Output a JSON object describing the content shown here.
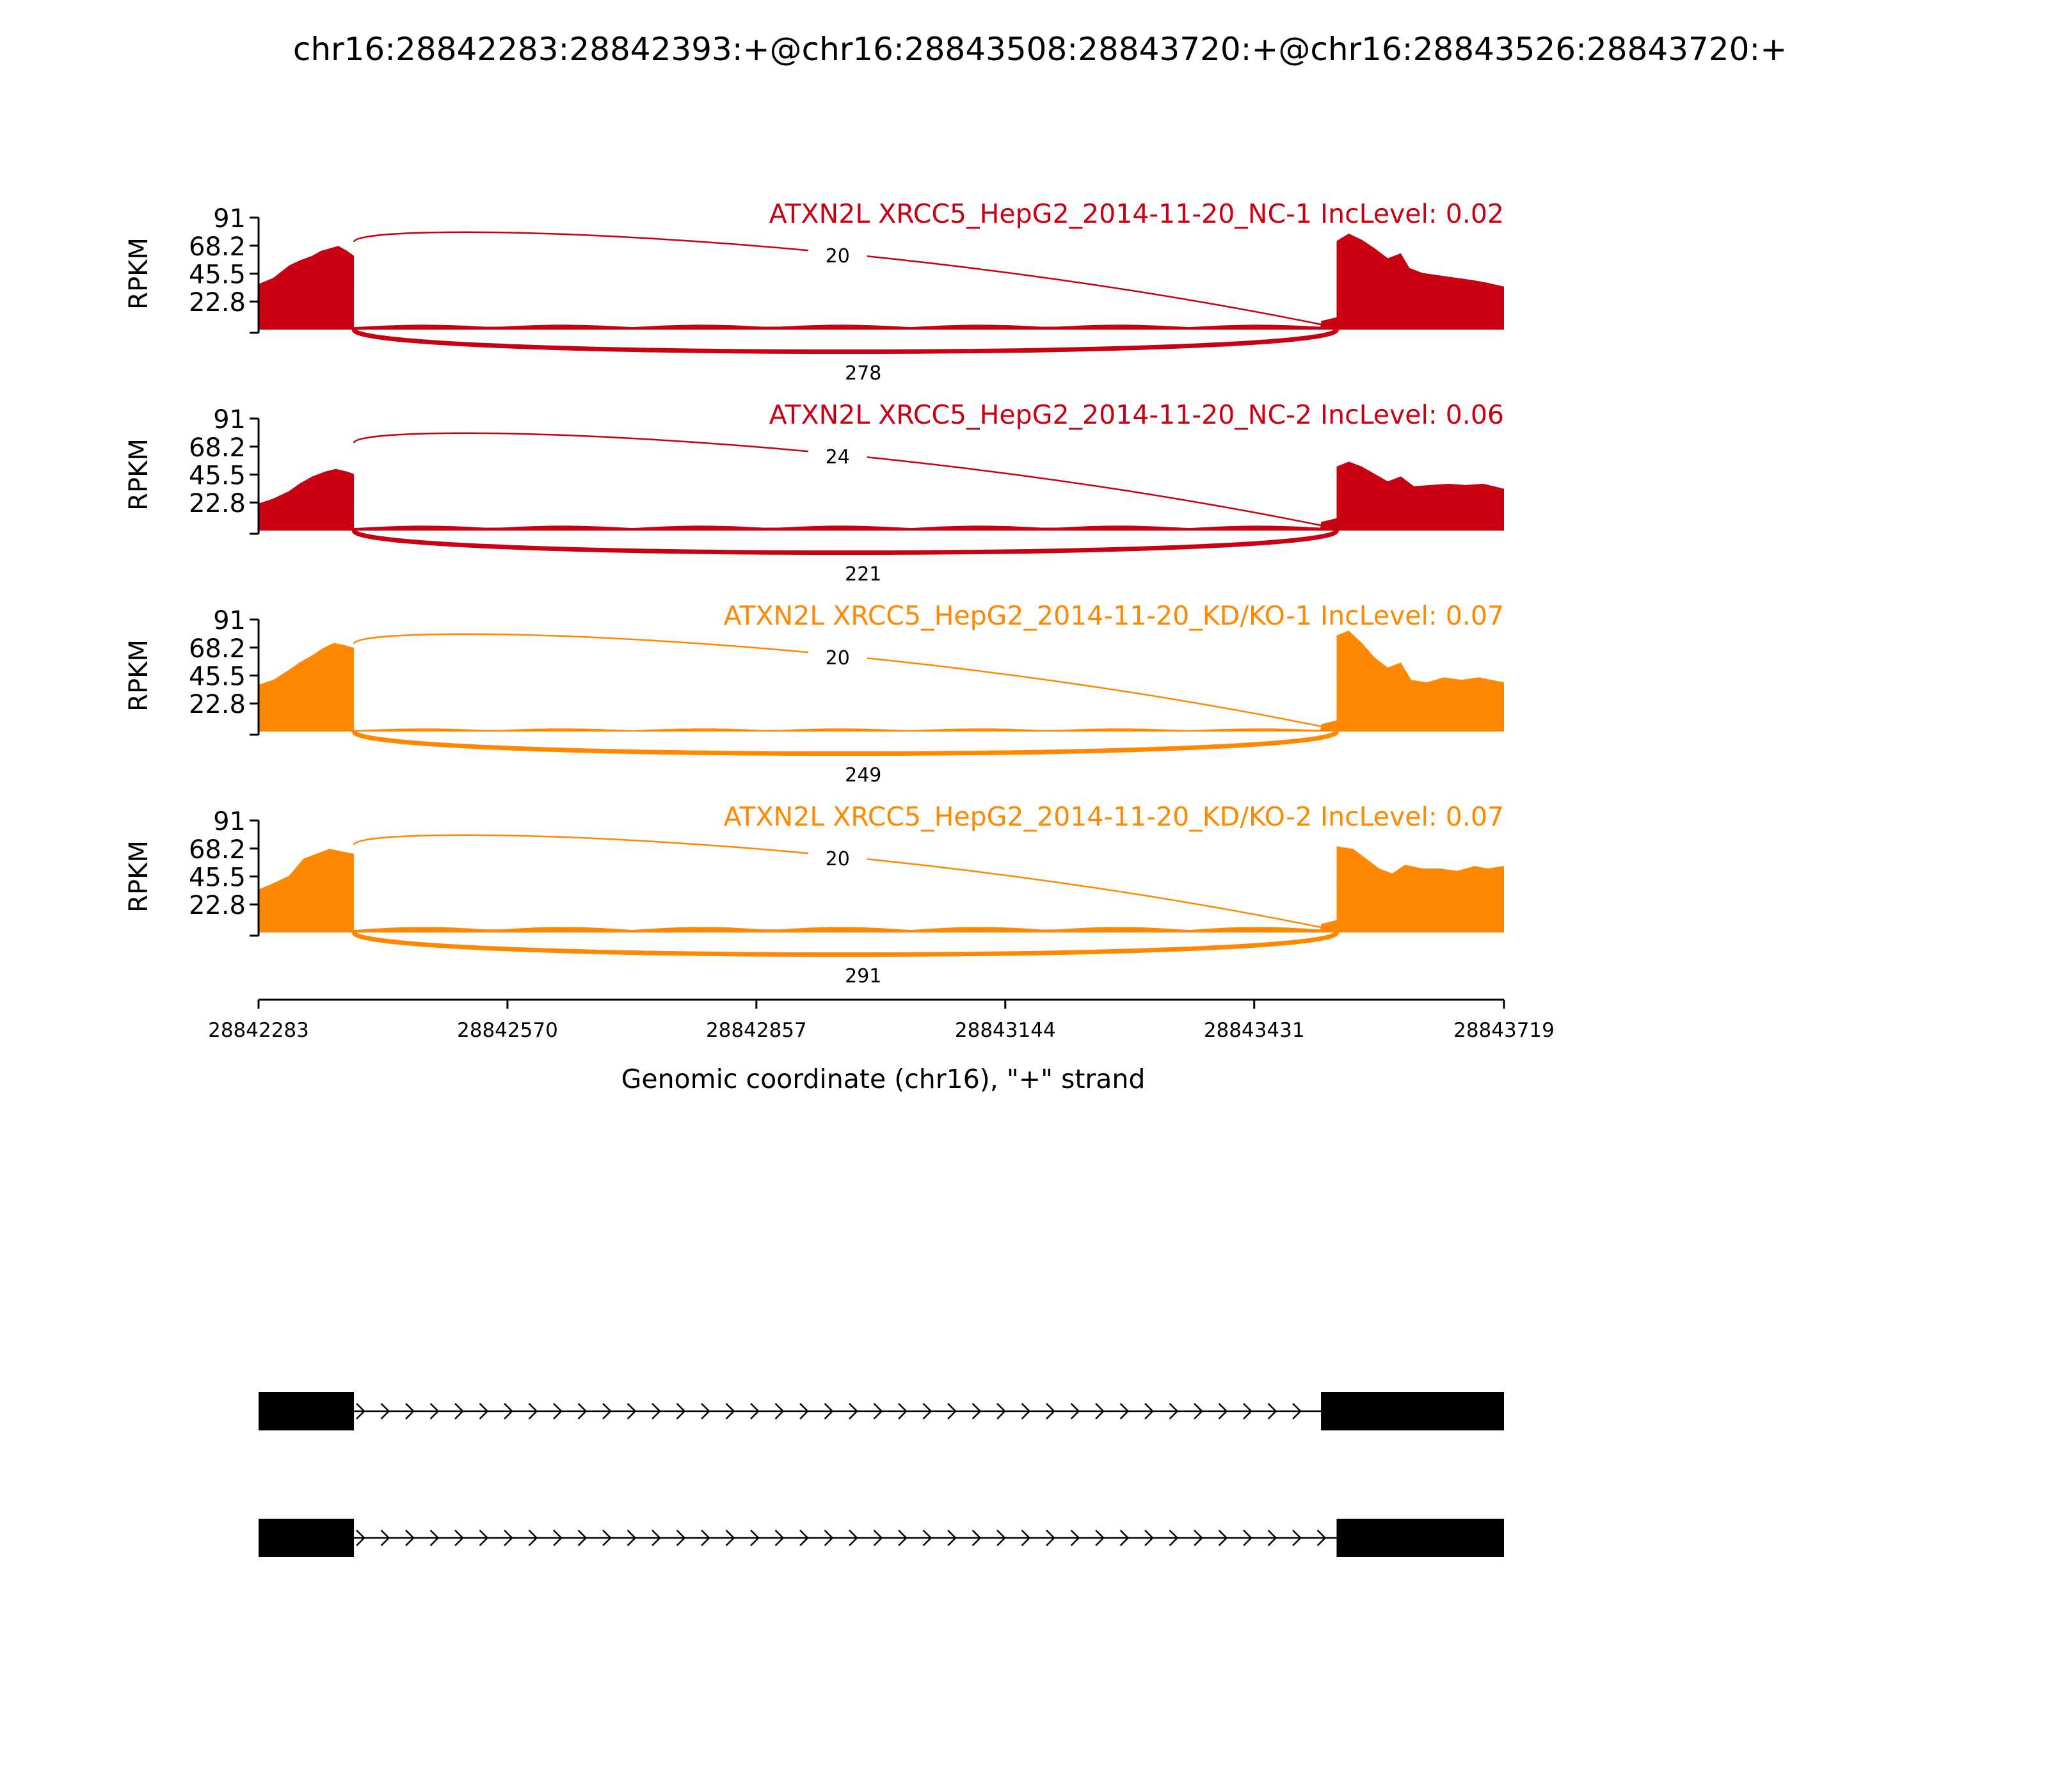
{
  "chart_data": {
    "type": "area",
    "title": "chr16:28842283:28842393:+@chr16:28843508:28843720:+@chr16:28843526:28843720:+",
    "xlabel": "Genomic coordinate (chr16), \"+\" strand",
    "ylabel": "RPKM",
    "xlim": [
      28842283,
      28843719
    ],
    "x_ticks": [
      "28842283",
      "28842570",
      "28842857",
      "28843144",
      "28843431",
      "28843719"
    ],
    "ylim": [
      0,
      91
    ],
    "y_ticks": [
      "91",
      "68.2",
      "45.5",
      "22.8"
    ],
    "grid": false,
    "exon1_end": 28842393,
    "exon2_start": 28843526,
    "series": [
      {
        "name": "ATXN2L XRCC5_HepG2_2014-11-20_NC-1 IncLevel: 0.02",
        "color": "#c80012",
        "junction_upper": "20",
        "junction_lower": "278",
        "exon1_profile": [
          [
            28842283,
            37
          ],
          [
            28842300,
            42
          ],
          [
            28842318,
            52
          ],
          [
            28842330,
            56
          ],
          [
            28842345,
            60
          ],
          [
            28842355,
            64
          ],
          [
            28842365,
            66
          ],
          [
            28842375,
            68
          ],
          [
            28842385,
            64
          ],
          [
            28842393,
            60
          ]
        ],
        "intron_level": 2,
        "intron_bump": 4,
        "exon2_profile": [
          [
            28843526,
            72
          ],
          [
            28843540,
            78
          ],
          [
            28843555,
            73
          ],
          [
            28843570,
            66
          ],
          [
            28843585,
            58
          ],
          [
            28843600,
            62
          ],
          [
            28843610,
            50
          ],
          [
            28843625,
            46
          ],
          [
            28843645,
            44
          ],
          [
            28843665,
            42
          ],
          [
            28843685,
            40
          ],
          [
            28843700,
            38
          ],
          [
            28843719,
            35
          ]
        ]
      },
      {
        "name": "ATXN2L XRCC5_HepG2_2014-11-20_NC-2 IncLevel: 0.06",
        "color": "#c80012",
        "junction_upper": "24",
        "junction_lower": "221",
        "exon1_profile": [
          [
            28842283,
            22
          ],
          [
            28842300,
            26
          ],
          [
            28842318,
            32
          ],
          [
            28842330,
            38
          ],
          [
            28842345,
            44
          ],
          [
            28842360,
            48
          ],
          [
            28842372,
            50
          ],
          [
            28842385,
            48
          ],
          [
            28842393,
            46
          ]
        ],
        "intron_level": 2,
        "intron_bump": 4,
        "exon2_profile": [
          [
            28843526,
            52
          ],
          [
            28843540,
            56
          ],
          [
            28843555,
            52
          ],
          [
            28843570,
            46
          ],
          [
            28843585,
            40
          ],
          [
            28843600,
            44
          ],
          [
            28843615,
            36
          ],
          [
            28843635,
            37
          ],
          [
            28843655,
            38
          ],
          [
            28843675,
            37
          ],
          [
            28843695,
            38
          ],
          [
            28843719,
            34
          ]
        ]
      },
      {
        "name": "ATXN2L XRCC5_HepG2_2014-11-20_KD/KO-1 IncLevel: 0.07",
        "color": "#ff8800",
        "junction_upper": "20",
        "junction_lower": "249",
        "exon1_profile": [
          [
            28842283,
            38
          ],
          [
            28842300,
            42
          ],
          [
            28842318,
            50
          ],
          [
            28842330,
            56
          ],
          [
            28842345,
            62
          ],
          [
            28842358,
            68
          ],
          [
            28842370,
            72
          ],
          [
            28842383,
            70
          ],
          [
            28842393,
            68
          ]
        ],
        "intron_level": 1,
        "intron_bump": 3,
        "exon2_profile": [
          [
            28843526,
            78
          ],
          [
            28843540,
            82
          ],
          [
            28843555,
            72
          ],
          [
            28843570,
            60
          ],
          [
            28843585,
            52
          ],
          [
            28843600,
            56
          ],
          [
            28843612,
            42
          ],
          [
            28843630,
            40
          ],
          [
            28843650,
            44
          ],
          [
            28843670,
            42
          ],
          [
            28843690,
            44
          ],
          [
            28843719,
            40
          ]
        ]
      },
      {
        "name": "ATXN2L XRCC5_HepG2_2014-11-20_KD/KO-2 IncLevel: 0.07",
        "color": "#ff8800",
        "junction_upper": "20",
        "junction_lower": "291",
        "exon1_profile": [
          [
            28842283,
            35
          ],
          [
            28842300,
            40
          ],
          [
            28842318,
            46
          ],
          [
            28842335,
            60
          ],
          [
            28842350,
            64
          ],
          [
            28842365,
            68
          ],
          [
            28842378,
            66
          ],
          [
            28842393,
            64
          ]
        ],
        "intron_level": 2,
        "intron_bump": 5,
        "exon2_profile": [
          [
            28843526,
            70
          ],
          [
            28843545,
            68
          ],
          [
            28843560,
            60
          ],
          [
            28843575,
            52
          ],
          [
            28843590,
            48
          ],
          [
            28843605,
            55
          ],
          [
            28843625,
            52
          ],
          [
            28843645,
            52
          ],
          [
            28843665,
            50
          ],
          [
            28843685,
            54
          ],
          [
            28843700,
            52
          ],
          [
            28843719,
            54
          ]
        ]
      }
    ],
    "isoforms": [
      {
        "exons": [
          [
            28842283,
            28842393
          ],
          [
            28843508,
            28843719
          ]
        ]
      },
      {
        "exons": [
          [
            28842283,
            28842393
          ],
          [
            28843526,
            28843719
          ]
        ]
      }
    ]
  }
}
